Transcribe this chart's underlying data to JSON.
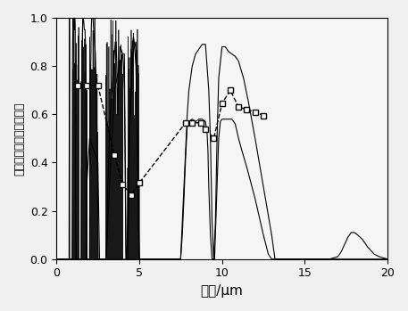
{
  "title": "",
  "xlabel": "波长/μm",
  "ylabel": "气体对红外辐射的透过率",
  "xlim": [
    0,
    20
  ],
  "ylim": [
    0,
    1.0
  ],
  "xticks": [
    0,
    5,
    10,
    15,
    20
  ],
  "yticks": [
    0,
    0.2,
    0.4,
    0.6,
    0.8,
    1.0
  ],
  "background": "#f5f5f5",
  "line_color": "#222222",
  "dashed_color": "#444444"
}
